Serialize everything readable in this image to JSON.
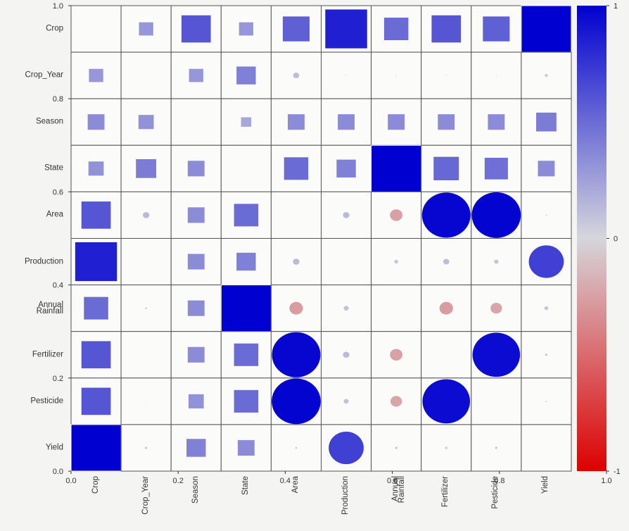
{
  "chart_data": {
    "type": "correlation-matrix",
    "variables": [
      "Crop",
      "Crop_Year",
      "Season",
      "State",
      "Area",
      "Production",
      "Annual\nRainfall",
      "Fertilizer",
      "Pesticide",
      "Yield"
    ],
    "categorical": [
      true,
      false,
      true,
      true,
      false,
      false,
      false,
      false,
      false,
      false
    ],
    "matrix": [
      [
        null,
        0.3,
        0.6,
        0.3,
        0.55,
        0.85,
        0.5,
        0.6,
        0.55,
        1.0
      ],
      [
        0.3,
        null,
        0.3,
        0.4,
        0.12,
        0.02,
        0.02,
        0.02,
        0.02,
        0.06
      ],
      [
        0.35,
        0.32,
        null,
        0.22,
        0.35,
        0.35,
        0.35,
        0.35,
        0.35,
        0.42
      ],
      [
        0.32,
        0.42,
        0.35,
        null,
        0.5,
        0.4,
        1.0,
        0.52,
        0.48,
        0.35
      ],
      [
        0.6,
        0.13,
        0.35,
        0.5,
        null,
        0.13,
        -0.25,
        0.97,
        0.98,
        0.03
      ],
      [
        0.85,
        0.01,
        0.35,
        0.4,
        0.13,
        null,
        0.08,
        0.12,
        0.09,
        0.7
      ],
      [
        0.5,
        0.04,
        0.35,
        1.0,
        -0.27,
        0.1,
        null,
        -0.27,
        -0.23,
        0.08
      ],
      [
        0.6,
        0.01,
        0.35,
        0.5,
        0.97,
        0.13,
        -0.25,
        null,
        0.95,
        0.05
      ],
      [
        0.6,
        0.01,
        0.32,
        0.5,
        0.98,
        0.1,
        -0.23,
        0.95,
        null,
        0.03
      ],
      [
        1.0,
        0.05,
        0.4,
        0.35,
        0.04,
        0.7,
        0.05,
        0.05,
        0.05,
        null
      ]
    ],
    "colormap": [
      "#dd0000",
      "#d6d6dc",
      "#0000d0"
    ],
    "clim": [
      -1,
      1
    ],
    "cticks": [
      1,
      0,
      -1
    ],
    "xlim": [
      0,
      1
    ],
    "ylim": [
      0,
      1
    ],
    "xticks": [
      {
        "value": 0,
        "label": "0.0"
      },
      {
        "value": 0.2,
        "label": "0.2"
      },
      {
        "value": 0.4,
        "label": "0.4"
      },
      {
        "value": 0.6,
        "label": "0.6"
      },
      {
        "value": 0.8,
        "label": "0.8"
      },
      {
        "value": 1,
        "label": "1.0"
      }
    ],
    "yticks": [
      {
        "value": 0,
        "label": "0.0"
      },
      {
        "value": 0.2,
        "label": "0.2"
      },
      {
        "value": 0.4,
        "label": "0.4"
      },
      {
        "value": 0.6,
        "label": "0.6"
      },
      {
        "value": 0.8,
        "label": "0.8"
      },
      {
        "value": 1,
        "label": "1.0"
      }
    ]
  }
}
